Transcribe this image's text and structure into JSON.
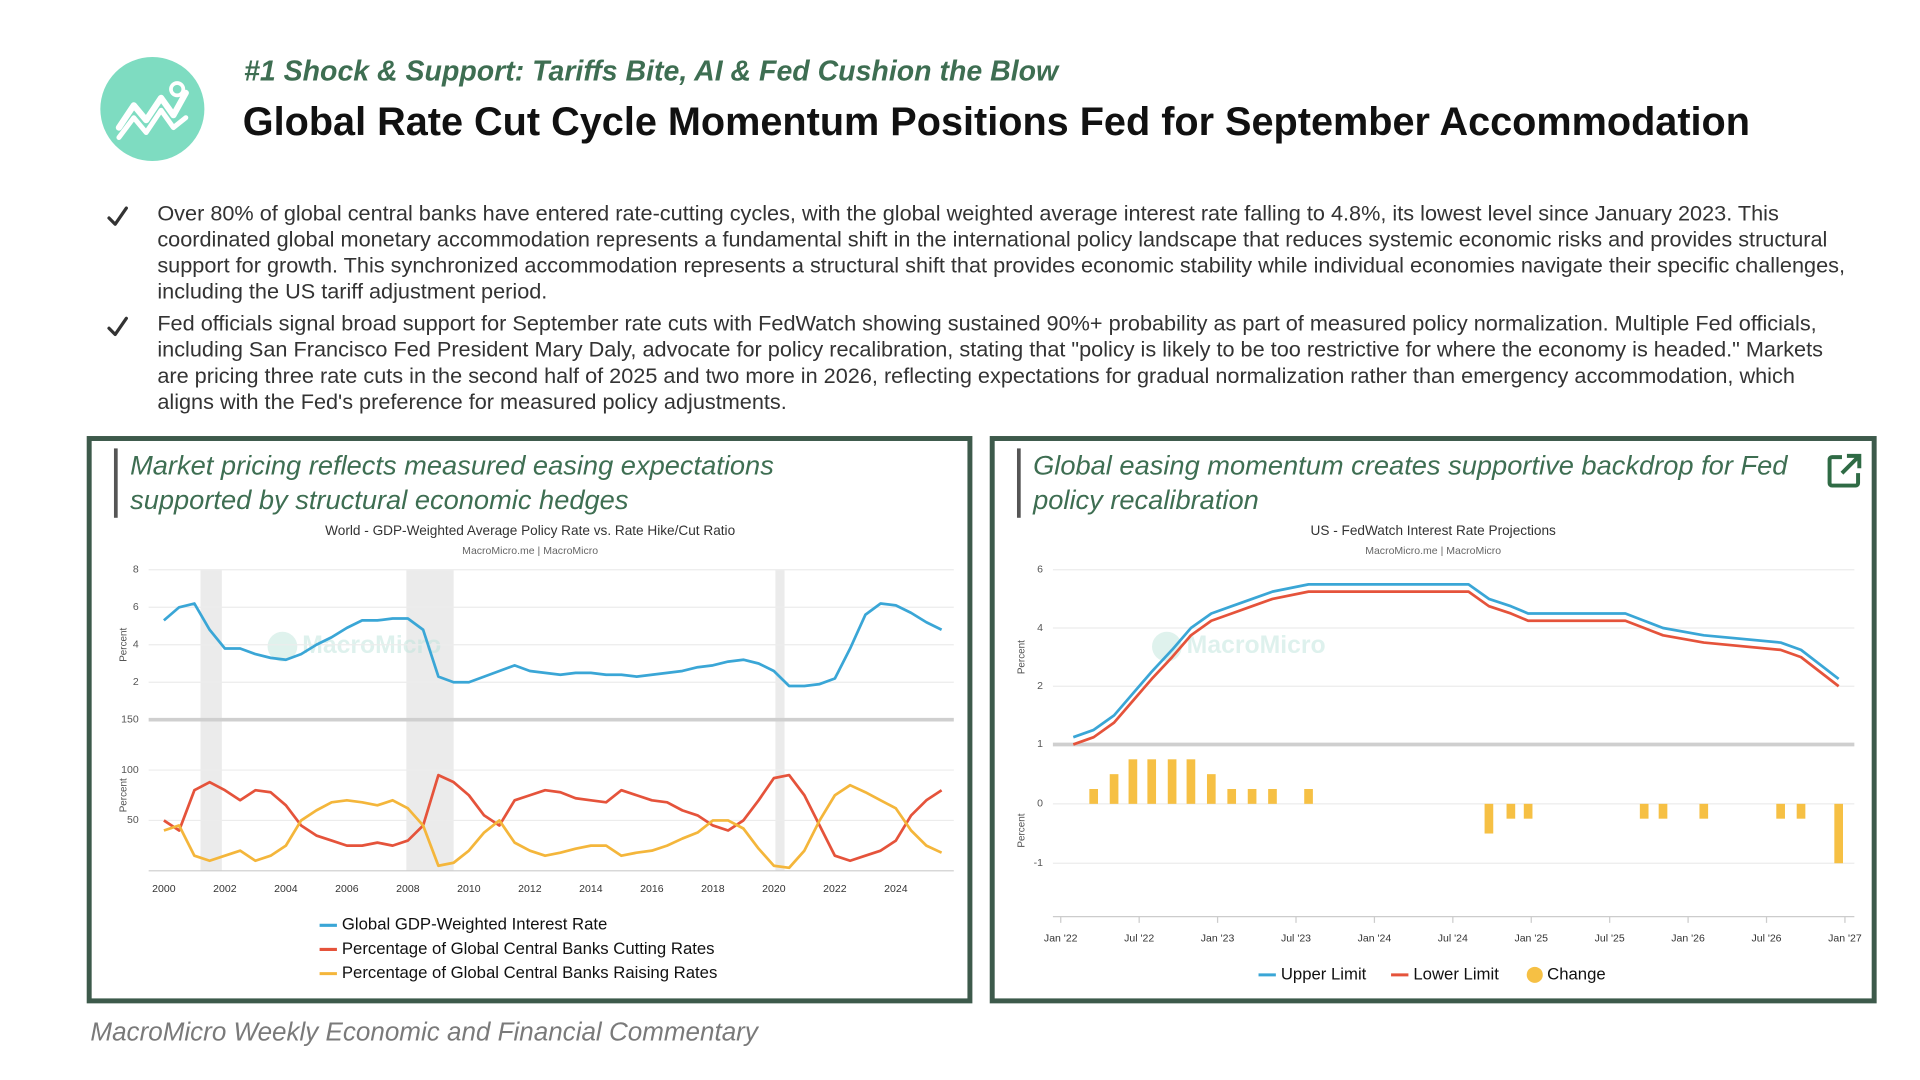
{
  "header": {
    "subtitle": "#1 Shock & Support: Tariffs Bite, AI & Fed Cushion the Blow",
    "title": "Global Rate Cut Cycle Momentum Positions Fed for September Accommodation"
  },
  "bullets": [
    "Over 80% of global central banks have entered rate-cutting cycles, with the global weighted average interest rate falling to 4.8%, its lowest level since January 2023. This coordinated global monetary accommodation represents a fundamental shift in the international policy landscape that reduces systemic economic risks and provides structural support for growth. This synchronized accommodation represents a structural shift that provides economic stability while individual economies navigate their specific challenges, including the US tariff adjustment period.",
    "Fed officials signal broad support for September rate cuts with FedWatch showing sustained 90%+ probability as part of measured policy normalization. Multiple Fed officials, including San Francisco Fed President Mary Daly, advocate for policy recalibration, stating that \"policy is likely to be too restrictive for where the economy is headed.\" Markets are pricing three rate cuts in the second half of 2025 and two more in 2026, reflecting expectations for gradual normalization rather than emergency accommodation, which aligns with the Fed's preference for measured policy adjustments."
  ],
  "panels": [
    {
      "heading": "Market pricing reflects measured easing expectations supported by structural economic hedges"
    },
    {
      "heading": "Global easing momentum creates supportive backdrop for Fed policy recalibration"
    }
  ],
  "chart_data": [
    {
      "type": "line",
      "title": "World - GDP-Weighted Average Policy Rate vs. Rate Hike/Cut Ratio",
      "source": "MacroMicro.me | MacroMicro",
      "watermark": "MacroMicro",
      "x": [
        2000,
        2000.5,
        2001,
        2001.5,
        2002,
        2002.5,
        2003,
        2003.5,
        2004,
        2004.5,
        2005,
        2005.5,
        2006,
        2006.5,
        2007,
        2007.5,
        2008,
        2008.5,
        2009,
        2009.5,
        2010,
        2010.5,
        2011,
        2011.5,
        2012,
        2012.5,
        2013,
        2013.5,
        2014,
        2014.5,
        2015,
        2015.5,
        2016,
        2016.5,
        2017,
        2017.5,
        2018,
        2018.5,
        2019,
        2019.5,
        2020,
        2020.5,
        2021,
        2021.5,
        2022,
        2022.5,
        2023,
        2023.5,
        2024,
        2024.5,
        2025,
        2025.5
      ],
      "xlim": [
        1999.5,
        2025.9
      ],
      "xticks": [
        2000,
        2002,
        2004,
        2006,
        2008,
        2010,
        2012,
        2014,
        2016,
        2018,
        2020,
        2022,
        2024
      ],
      "ylabel": "Percent",
      "ylim": [
        0,
        8
      ],
      "yticks": [
        2,
        4,
        6,
        8
      ],
      "y2label": "Percent",
      "y2lim": [
        0,
        150
      ],
      "y2ticks": [
        50,
        100,
        150
      ],
      "grid": true,
      "shaded_periods": [
        [
          2001.2,
          2001.9
        ],
        [
          2007.95,
          2009.5
        ],
        [
          2020.05,
          2020.35
        ]
      ],
      "series": [
        {
          "name": "Global GDP-Weighted Interest Rate",
          "color": "#3aa6d6",
          "axis": "y",
          "values": [
            5.3,
            6.0,
            6.2,
            4.8,
            3.8,
            3.8,
            3.5,
            3.3,
            3.2,
            3.5,
            4.0,
            4.4,
            4.9,
            5.3,
            5.3,
            5.4,
            5.4,
            4.8,
            2.3,
            2.0,
            2.0,
            2.3,
            2.6,
            2.9,
            2.6,
            2.5,
            2.4,
            2.5,
            2.5,
            2.4,
            2.4,
            2.3,
            2.4,
            2.5,
            2.6,
            2.8,
            2.9,
            3.1,
            3.2,
            3.0,
            2.6,
            1.8,
            1.8,
            1.9,
            2.2,
            3.8,
            5.6,
            6.2,
            6.1,
            5.7,
            5.2,
            4.8
          ]
        },
        {
          "name": "Percentage of Global Central Banks Cutting Rates",
          "color": "#e5533b",
          "axis": "y2",
          "values": [
            50,
            40,
            80,
            88,
            80,
            70,
            80,
            78,
            65,
            45,
            35,
            30,
            25,
            25,
            28,
            25,
            30,
            45,
            95,
            88,
            75,
            55,
            45,
            70,
            75,
            80,
            78,
            72,
            70,
            68,
            80,
            75,
            70,
            68,
            60,
            55,
            45,
            40,
            50,
            70,
            92,
            95,
            75,
            45,
            15,
            10,
            15,
            20,
            30,
            55,
            70,
            80
          ]
        },
        {
          "name": "Percentage of Global Central Banks Raising Rates",
          "color": "#f4b63b",
          "axis": "y2",
          "values": [
            40,
            45,
            15,
            10,
            15,
            20,
            10,
            15,
            25,
            50,
            60,
            68,
            70,
            68,
            65,
            70,
            62,
            45,
            5,
            8,
            20,
            38,
            50,
            28,
            20,
            15,
            18,
            22,
            25,
            25,
            15,
            18,
            20,
            25,
            32,
            38,
            50,
            50,
            42,
            22,
            5,
            3,
            20,
            50,
            75,
            85,
            78,
            70,
            62,
            40,
            25,
            18
          ]
        }
      ]
    },
    {
      "type": "line",
      "title": "US - FedWatch Interest Rate Projections",
      "source": "MacroMicro.me | MacroMicro",
      "watermark": "MacroMicro",
      "x": [
        2022.08,
        2022.21,
        2022.34,
        2022.46,
        2022.58,
        2022.71,
        2022.83,
        2022.96,
        2023.09,
        2023.22,
        2023.35,
        2023.58,
        2024.6,
        2024.73,
        2024.87,
        2024.98,
        2025.6,
        2025.72,
        2025.84,
        2026.1,
        2026.59,
        2026.72,
        2026.96
      ],
      "xlim": [
        2021.95,
        2027.06
      ],
      "xticks": [
        {
          "value": 2022,
          "label": "Jan '22"
        },
        {
          "value": 2022.5,
          "label": "Jul '22"
        },
        {
          "value": 2023,
          "label": "Jan '23"
        },
        {
          "value": 2023.5,
          "label": "Jul '23"
        },
        {
          "value": 2024,
          "label": "Jan '24"
        },
        {
          "value": 2024.5,
          "label": "Jul '24"
        },
        {
          "value": 2025,
          "label": "Jan '25"
        },
        {
          "value": 2025.5,
          "label": "Jul '25"
        },
        {
          "value": 2026,
          "label": "Jan '26"
        },
        {
          "value": 2026.5,
          "label": "Jul '26"
        },
        {
          "value": 2027,
          "label": "Jan '27"
        }
      ],
      "ylabel": "Percent",
      "ylim": [
        0,
        6
      ],
      "yticks": [
        2,
        4,
        6
      ],
      "y2label": "Percent",
      "y2lim": [
        -1.9,
        1
      ],
      "y2ticks": [
        -1,
        0,
        1
      ],
      "grid": true,
      "series": [
        {
          "name": "Upper Limit",
          "color": "#3aa6d6",
          "axis": "y",
          "values": [
            0.25,
            0.5,
            1,
            1.75,
            2.5,
            3.25,
            4,
            4.5,
            4.75,
            5,
            5.25,
            5.5,
            5.5,
            5,
            4.75,
            4.5,
            4.5,
            4.25,
            4,
            3.75,
            3.5,
            3.25,
            2.25
          ]
        },
        {
          "name": "Lower Limit",
          "color": "#e5533b",
          "axis": "y",
          "values": [
            0,
            0.25,
            0.75,
            1.5,
            2.25,
            3,
            3.75,
            4.25,
            4.5,
            4.75,
            5,
            5.25,
            5.25,
            4.75,
            4.5,
            4.25,
            4.25,
            4,
            3.75,
            3.5,
            3.25,
            3,
            2
          ]
        },
        {
          "name": "Change",
          "color": "#f6c044",
          "axis": "y2",
          "type": "bar",
          "values": [
            null,
            0.25,
            0.5,
            0.75,
            0.75,
            0.75,
            0.75,
            0.5,
            0.25,
            0.25,
            0.25,
            0.25,
            null,
            -0.5,
            -0.25,
            -0.25,
            null,
            -0.25,
            -0.25,
            -0.25,
            -0.25,
            -0.25,
            -1
          ]
        }
      ]
    }
  ],
  "footer": "MacroMicro Weekly Economic and Financial Commentary"
}
